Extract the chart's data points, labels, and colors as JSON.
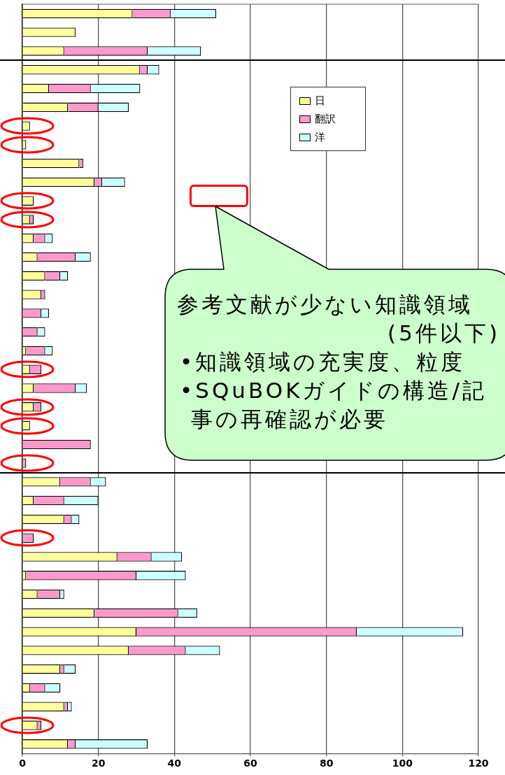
{
  "chart_data": {
    "type": "bar",
    "orientation": "horizontal",
    "stacked": true,
    "categories": [
      null,
      null,
      null,
      null,
      null,
      null,
      null,
      null,
      null,
      null,
      null,
      null,
      null,
      null,
      null,
      null,
      null,
      null,
      null,
      null,
      null,
      null,
      null,
      null,
      null,
      null,
      null,
      null,
      null,
      null,
      null,
      null,
      null,
      null,
      null,
      null,
      null,
      null,
      null,
      null
    ],
    "series": [
      {
        "name": "日",
        "color": "#ffff99",
        "values": [
          29,
          14,
          11,
          31,
          7,
          12,
          2,
          1,
          15,
          19,
          3,
          2,
          3,
          4,
          6,
          5,
          0,
          0,
          1,
          2,
          3,
          3,
          2,
          0,
          0,
          10,
          3,
          11,
          0,
          25,
          1,
          4,
          19,
          30,
          28,
          10,
          2,
          11,
          4,
          12
        ]
      },
      {
        "name": "翻訳",
        "color": "#ff99cc",
        "values": [
          10,
          0,
          22,
          2,
          11,
          8,
          0,
          0,
          1,
          2,
          0,
          1,
          3,
          10,
          4,
          1,
          5,
          4,
          5,
          3,
          11,
          2,
          0,
          18,
          1,
          8,
          8,
          2,
          3,
          9,
          29,
          6,
          22,
          58,
          15,
          1,
          4,
          1,
          1,
          2
        ]
      },
      {
        "name": "洋",
        "color": "#ccffff",
        "values": [
          12,
          0,
          14,
          3,
          13,
          8,
          0,
          0,
          0,
          6,
          0,
          0,
          2,
          4,
          2,
          0,
          2,
          2,
          2,
          0,
          3,
          0,
          0,
          0,
          0,
          4,
          9,
          2,
          0,
          8,
          13,
          1,
          5,
          28,
          9,
          3,
          4,
          1,
          0,
          19
        ]
      }
    ],
    "xlim": [
      0,
      120
    ],
    "xticks": [
      0,
      20,
      40,
      60,
      80,
      100,
      120
    ],
    "grid": "x",
    "legend": "top right",
    "annotations": [
      "参考文献が少ない知識領域",
      "(5件以下)",
      "•知識領域の充実度、粒度",
      "•SQuBOKガイドの構造/記事の再確認が必要"
    ]
  }
}
